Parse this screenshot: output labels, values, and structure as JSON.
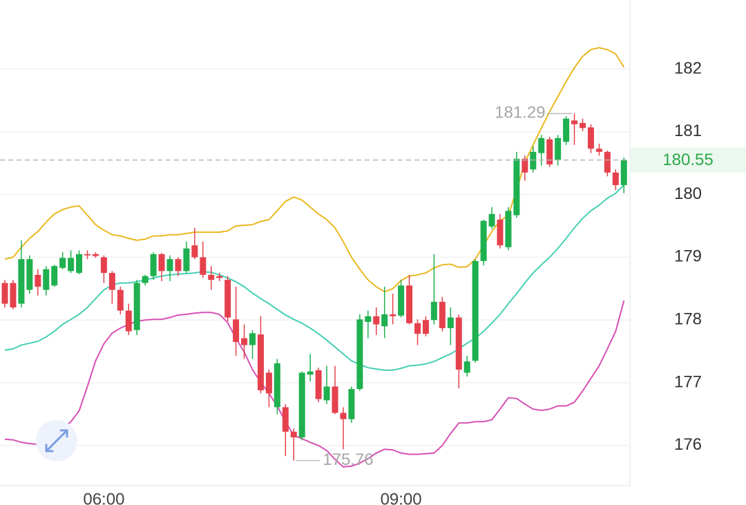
{
  "chart_data": {
    "type": "candlestick",
    "categories": [
      null,
      null,
      null,
      null,
      null,
      null,
      null,
      null,
      null,
      null,
      null,
      null,
      "06:00",
      null,
      null,
      null,
      null,
      null,
      null,
      null,
      null,
      null,
      null,
      null,
      null,
      null,
      null,
      null,
      null,
      null,
      null,
      null,
      null,
      null,
      null,
      null,
      null,
      null,
      null,
      null,
      null,
      null,
      null,
      null,
      null,
      null,
      null,
      null,
      "09:00",
      null,
      null,
      null,
      null,
      null,
      null,
      null,
      null,
      null,
      null,
      null,
      null,
      null,
      null,
      null,
      null,
      null,
      null,
      null,
      null,
      null,
      null,
      null,
      null,
      null,
      null,
      null
    ],
    "open": [
      178.59,
      178.59,
      178.26,
      178.48,
      178.72,
      178.48,
      178.55,
      178.83,
      178.78,
      178.75,
      179.05,
      179.05,
      179.0,
      178.75,
      178.48,
      178.15,
      177.84,
      178.59,
      178.7,
      179.05,
      178.78,
      178.97,
      178.78,
      179.19,
      179.0,
      178.72,
      178.7,
      178.64,
      178.01,
      177.71,
      177.6,
      177.77,
      177.16,
      176.61,
      176.61,
      176.22,
      176.13,
      177.13,
      177.2,
      176.72,
      176.94,
      176.52,
      176.42,
      176.9,
      177.97,
      178.06,
      177.9,
      178.09,
      178.07,
      178.55,
      177.95,
      178.0,
      178.0,
      178.29,
      177.87,
      178.04,
      177.16,
      177.35,
      178.94,
      179.49,
      179.6,
      179.16,
      179.67,
      180.57,
      180.4,
      180.66,
      180.88,
      180.55,
      180.84,
      181.18,
      181.14,
      181.07,
      180.73,
      180.68,
      180.35,
      180.15
    ],
    "high": [
      178.64,
      178.64,
      179.27,
      179.03,
      178.81,
      178.86,
      178.88,
      179.08,
      179.11,
      179.11,
      179.11,
      179.08,
      179.03,
      178.78,
      178.53,
      178.26,
      178.64,
      178.72,
      179.08,
      179.07,
      179.03,
      179.0,
      179.25,
      179.47,
      179.25,
      178.86,
      178.75,
      178.7,
      178.53,
      177.93,
      177.84,
      178.06,
      177.21,
      177.38,
      176.66,
      176.27,
      177.18,
      177.46,
      177.24,
      177.27,
      177.27,
      176.61,
      176.94,
      178.09,
      178.15,
      178.2,
      178.53,
      178.42,
      178.64,
      178.72,
      178.01,
      178.06,
      179.05,
      178.37,
      178.2,
      178.09,
      177.43,
      178.97,
      179.6,
      179.8,
      179.69,
      179.8,
      180.68,
      180.62,
      180.77,
      180.95,
      180.92,
      180.95,
      181.25,
      181.29,
      181.21,
      181.12,
      180.81,
      180.7,
      180.4,
      180.59
    ],
    "low": [
      178.2,
      178.17,
      178.2,
      178.42,
      178.39,
      178.39,
      178.53,
      178.81,
      178.75,
      178.73,
      178.97,
      178.99,
      178.59,
      178.26,
      178.09,
      177.76,
      177.76,
      178.55,
      178.64,
      178.62,
      178.62,
      178.7,
      178.75,
      178.97,
      178.67,
      178.48,
      178.62,
      177.98,
      177.43,
      177.38,
      177.38,
      176.83,
      176.61,
      176.5,
      175.83,
      175.76,
      176.08,
      177.02,
      176.69,
      176.66,
      176.5,
      175.94,
      176.36,
      176.87,
      177.71,
      177.76,
      177.71,
      177.93,
      178.04,
      177.93,
      177.6,
      177.74,
      177.93,
      177.82,
      177.6,
      176.91,
      177.1,
      177.32,
      178.87,
      179.45,
      179.14,
      179.11,
      179.63,
      180.22,
      180.35,
      180.46,
      180.44,
      180.46,
      180.79,
      180.79,
      181.01,
      180.66,
      180.62,
      180.29,
      180.07,
      180.02
    ],
    "close": [
      178.26,
      178.2,
      178.97,
      178.97,
      178.53,
      178.81,
      178.86,
      178.99,
      178.99,
      179.05,
      179.03,
      179.02,
      178.75,
      178.48,
      178.15,
      177.82,
      178.59,
      178.7,
      179.05,
      178.78,
      178.97,
      178.78,
      179.14,
      179.0,
      178.72,
      178.64,
      178.67,
      178.04,
      177.65,
      177.6,
      177.79,
      176.88,
      176.83,
      177.31,
      176.22,
      176.13,
      177.16,
      177.18,
      176.74,
      176.94,
      176.52,
      176.42,
      176.9,
      178.01,
      178.06,
      177.93,
      178.09,
      178.06,
      178.55,
      177.95,
      177.78,
      177.78,
      178.29,
      177.87,
      178.04,
      177.21,
      177.34,
      178.94,
      179.58,
      179.69,
      179.19,
      179.74,
      180.57,
      180.35,
      180.68,
      180.9,
      180.48,
      180.9,
      181.21,
      181.12,
      181.06,
      180.73,
      180.68,
      180.35,
      180.15,
      180.55
    ],
    "up_color": "#1fb04f",
    "down_color": "#e5414d",
    "series": [
      {
        "color": "#e9b820",
        "values": [
          178.97,
          179.0,
          179.16,
          179.3,
          179.41,
          179.56,
          179.69,
          179.76,
          179.8,
          179.82,
          179.67,
          179.52,
          179.43,
          179.36,
          179.34,
          179.3,
          179.27,
          179.29,
          179.34,
          179.34,
          179.36,
          179.36,
          179.38,
          179.4,
          179.4,
          179.4,
          179.4,
          179.42,
          179.5,
          179.51,
          179.52,
          179.57,
          179.6,
          179.74,
          179.89,
          179.96,
          179.91,
          179.8,
          179.69,
          179.6,
          179.47,
          179.25,
          179.0,
          178.81,
          178.64,
          178.53,
          178.45,
          178.5,
          178.63,
          178.7,
          178.72,
          178.75,
          178.83,
          178.88,
          178.89,
          178.84,
          178.85,
          178.97,
          179.19,
          179.41,
          179.58,
          179.67,
          180.07,
          180.51,
          180.79,
          181.06,
          181.32,
          181.56,
          181.8,
          182.02,
          182.2,
          182.31,
          182.34,
          182.31,
          182.24,
          182.03
        ]
      },
      {
        "color": "#45cfb4",
        "values": [
          177.52,
          177.54,
          177.6,
          177.63,
          177.66,
          177.73,
          177.82,
          177.93,
          178.01,
          178.09,
          178.2,
          178.34,
          178.48,
          178.56,
          178.59,
          178.59,
          178.61,
          178.64,
          178.67,
          178.7,
          178.72,
          178.73,
          178.74,
          178.75,
          178.77,
          178.76,
          178.72,
          178.67,
          178.61,
          178.53,
          178.43,
          178.34,
          178.26,
          178.17,
          178.08,
          178.01,
          177.95,
          177.87,
          177.78,
          177.68,
          177.57,
          177.46,
          177.35,
          177.29,
          177.24,
          177.22,
          177.2,
          177.2,
          177.23,
          177.27,
          177.28,
          177.3,
          177.34,
          177.4,
          177.46,
          177.54,
          177.63,
          177.71,
          177.82,
          177.95,
          178.09,
          178.26,
          178.42,
          178.59,
          178.75,
          178.88,
          179.0,
          179.14,
          179.3,
          179.47,
          179.62,
          179.74,
          179.83,
          179.94,
          180.02,
          180.15
        ]
      },
      {
        "color": "#d650b4",
        "values": [
          176.1,
          176.09,
          176.05,
          176.03,
          176.02,
          176.01,
          176.1,
          176.27,
          176.38,
          176.55,
          176.94,
          177.35,
          177.62,
          177.79,
          177.87,
          177.93,
          177.98,
          178.0,
          178.01,
          178.01,
          178.04,
          178.08,
          178.09,
          178.11,
          178.12,
          178.12,
          178.09,
          177.96,
          177.71,
          177.49,
          177.21,
          177.01,
          176.83,
          176.63,
          176.38,
          176.16,
          176.11,
          176.05,
          176.0,
          175.92,
          175.78,
          175.66,
          175.67,
          175.72,
          175.79,
          175.88,
          175.94,
          175.93,
          175.88,
          175.86,
          175.86,
          175.87,
          175.88,
          176.0,
          176.19,
          176.36,
          176.36,
          176.38,
          176.38,
          176.41,
          176.58,
          176.76,
          176.75,
          176.66,
          176.58,
          176.56,
          176.58,
          176.63,
          176.63,
          176.69,
          176.87,
          177.07,
          177.27,
          177.54,
          177.82,
          178.31
        ]
      }
    ],
    "ylim": [
      175.36,
      183.1
    ],
    "yticks": [
      176,
      177,
      178,
      179,
      180,
      181,
      182
    ],
    "grid": true,
    "last_price": 180.55,
    "last_price_color": "#2aa84a",
    "high_annotation": 181.29,
    "low_annotation": 175.76
  }
}
